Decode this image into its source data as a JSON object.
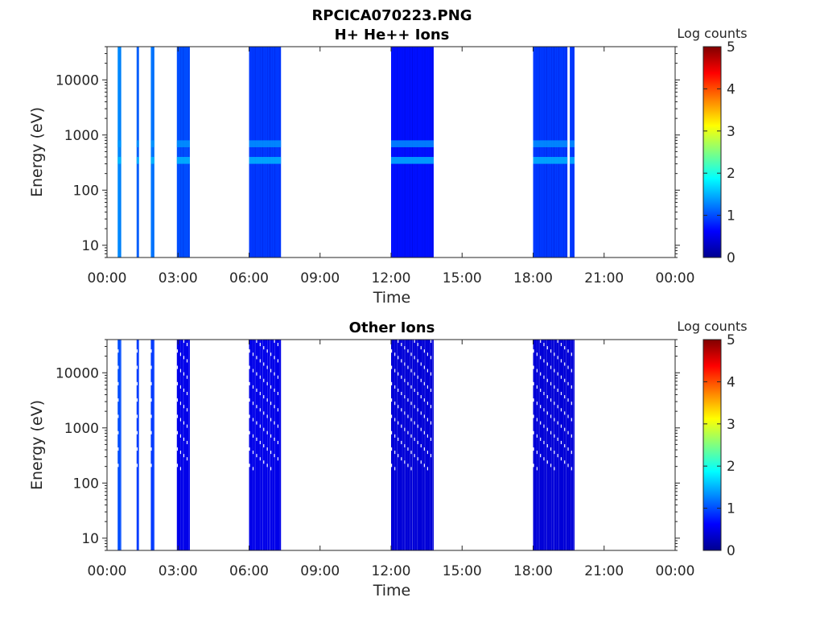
{
  "figure": {
    "title_line1": "RPCICA070223.PNG"
  },
  "colors": {
    "colormap": [
      "#00008f",
      "#0000ff",
      "#0080ff",
      "#00ffff",
      "#80ff80",
      "#ffff00",
      "#ff8000",
      "#ff0000",
      "#800000"
    ]
  },
  "chart_data": [
    {
      "type": "heatmap",
      "title": "H+ He++ Ions",
      "xlabel": "Time",
      "ylabel": "Energy (eV)",
      "x_ticks": [
        "00:00",
        "03:00",
        "06:00",
        "09:00",
        "12:00",
        "15:00",
        "18:00",
        "21:00",
        "00:00"
      ],
      "x_range_hours": [
        0,
        24
      ],
      "y_scale": "log",
      "y_ticks": [
        10,
        100,
        1000,
        10000
      ],
      "y_tick_labels": [
        "10",
        "100",
        "1000",
        "10000"
      ],
      "y_range": [
        6,
        40000
      ],
      "colorbar": {
        "label": "Log counts",
        "range": [
          0,
          5
        ],
        "ticks": [
          "0",
          "1",
          "2",
          "3",
          "4",
          "5"
        ]
      },
      "data_blocks": [
        {
          "start_hour": 0.45,
          "end_hour": 0.6,
          "level": 1.3
        },
        {
          "start_hour": 1.25,
          "end_hour": 1.35,
          "level": 1.1
        },
        {
          "start_hour": 1.85,
          "end_hour": 2.0,
          "level": 1.2
        },
        {
          "start_hour": 2.95,
          "end_hour": 3.5,
          "level": 1.0
        },
        {
          "start_hour": 6.0,
          "end_hour": 7.35,
          "level": 0.9
        },
        {
          "start_hour": 12.0,
          "end_hour": 13.8,
          "level": 0.7
        },
        {
          "start_hour": 18.0,
          "end_hour": 19.45,
          "level": 0.9
        },
        {
          "start_hour": 19.55,
          "end_hour": 19.75,
          "level": 0.9
        }
      ],
      "enhanced_energy_bands": [
        {
          "energy_low": 300,
          "energy_high": 400,
          "level": 1.6
        },
        {
          "energy_low": 600,
          "energy_high": 800,
          "level": 1.4
        }
      ]
    },
    {
      "type": "heatmap",
      "title": "Other Ions",
      "xlabel": "Time",
      "ylabel": "Energy (eV)",
      "x_ticks": [
        "00:00",
        "03:00",
        "06:00",
        "09:00",
        "12:00",
        "15:00",
        "18:00",
        "21:00",
        "00:00"
      ],
      "x_range_hours": [
        0,
        24
      ],
      "y_scale": "log",
      "y_ticks": [
        10,
        100,
        1000,
        10000
      ],
      "y_tick_labels": [
        "10",
        "100",
        "1000",
        "10000"
      ],
      "y_range": [
        6,
        40000
      ],
      "colorbar": {
        "label": "Log counts",
        "range": [
          0,
          5
        ],
        "ticks": [
          "0",
          "1",
          "2",
          "3",
          "4",
          "5"
        ]
      },
      "data_blocks": [
        {
          "start_hour": 0.45,
          "end_hour": 0.6,
          "level": 1.0
        },
        {
          "start_hour": 1.25,
          "end_hour": 1.35,
          "level": 0.9
        },
        {
          "start_hour": 1.85,
          "end_hour": 2.0,
          "level": 0.9
        },
        {
          "start_hour": 2.95,
          "end_hour": 3.5,
          "level": 0.5
        },
        {
          "start_hour": 6.0,
          "end_hour": 7.35,
          "level": 0.5
        },
        {
          "start_hour": 12.0,
          "end_hour": 13.8,
          "level": 0.4
        },
        {
          "start_hour": 18.0,
          "end_hour": 19.75,
          "level": 0.4
        }
      ],
      "enhanced_energy_bands": []
    }
  ]
}
